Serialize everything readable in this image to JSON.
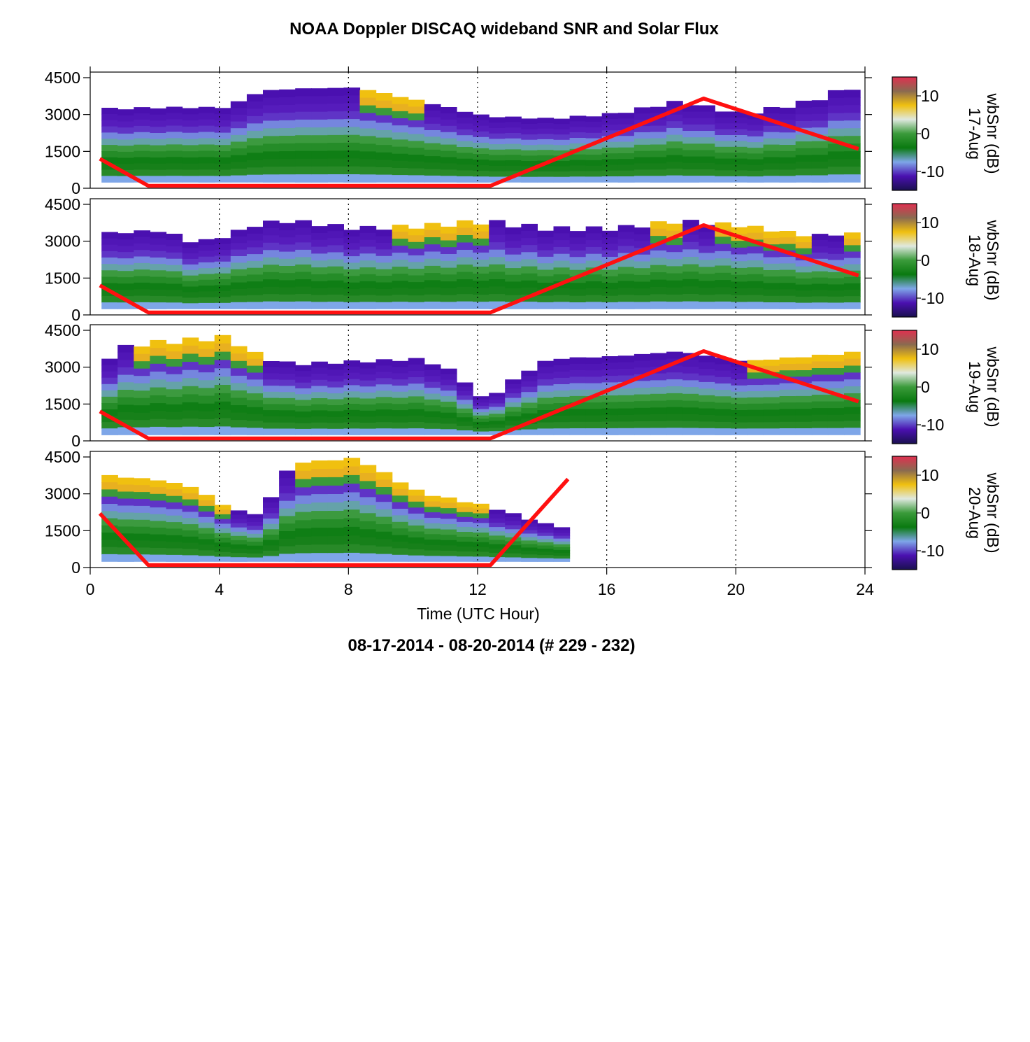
{
  "chart_data": {
    "type": "heatmap",
    "title": "NOAA Doppler DISCAQ wideband SNR and Solar Flux",
    "subtitle": "08-17-2014 - 08-20-2014   (# 229 - 232)",
    "xlabel": "Time (UTC Hour)",
    "xlim": [
      0,
      24
    ],
    "x_ticks": [
      "0",
      "4",
      "8",
      "12",
      "16",
      "20",
      "24"
    ],
    "ylim": [
      0,
      4500
    ],
    "y_ticks": [
      "0",
      "1500",
      "3000",
      "4500"
    ],
    "colorbar": {
      "label": "wbSnr (dB)",
      "range": [
        -15,
        15
      ],
      "ticks": [
        "10",
        "0",
        "-10"
      ],
      "colors": [
        "#1a1050",
        "#4a10b0",
        "#7ea6e8",
        "#0a7a10",
        "#3a9a3a",
        "#dfe8df",
        "#f0c010",
        "#8a6a50",
        "#e03050"
      ]
    },
    "solar_flux_color": "#ff1010",
    "panels": [
      {
        "day_label": "17-Aug",
        "data_end_hour": 23.8,
        "solar_flux": [
          [
            0.3,
            1200
          ],
          [
            1.8,
            100
          ],
          [
            12.4,
            100
          ],
          [
            19,
            3650
          ],
          [
            23.8,
            1600
          ]
        ],
        "snr_top": [
          [
            0.3,
            3200
          ],
          [
            2,
            3250
          ],
          [
            4,
            3250
          ],
          [
            5,
            3900
          ],
          [
            6,
            4000
          ],
          [
            8,
            4050
          ],
          [
            10,
            3500
          ],
          [
            12,
            2900
          ],
          [
            14,
            2800
          ],
          [
            16,
            3000
          ],
          [
            18,
            3500
          ],
          [
            20,
            3000
          ],
          [
            22,
            3500
          ],
          [
            23.8,
            4300
          ]
        ],
        "snr_bottom": 250,
        "fringe_hours": [
          8,
          9
        ]
      },
      {
        "day_label": "18-Aug",
        "data_end_hour": 23.8,
        "solar_flux": [
          [
            0.3,
            1200
          ],
          [
            1.8,
            100
          ],
          [
            12.4,
            100
          ],
          [
            19,
            3650
          ],
          [
            23.8,
            1600
          ]
        ],
        "snr_top": [
          [
            0.3,
            3300
          ],
          [
            2,
            3400
          ],
          [
            3,
            2900
          ],
          [
            4,
            3200
          ],
          [
            5,
            3700
          ],
          [
            6,
            3800
          ],
          [
            8,
            3500
          ],
          [
            10,
            3600
          ],
          [
            12,
            3800
          ],
          [
            14,
            3500
          ],
          [
            16,
            3500
          ],
          [
            18,
            3800
          ],
          [
            20,
            3600
          ],
          [
            22,
            3200
          ],
          [
            23.8,
            3300
          ]
        ],
        "snr_bottom": 250,
        "fringe_hours": [
          9,
          10,
          11,
          17,
          19,
          20,
          21,
          23
        ]
      },
      {
        "day_label": "19-Aug",
        "data_end_hour": 23.8,
        "solar_flux": [
          [
            0.3,
            1200
          ],
          [
            1.8,
            100
          ],
          [
            12.4,
            100
          ],
          [
            19,
            3650
          ],
          [
            23.8,
            1600
          ]
        ],
        "snr_top": [
          [
            0.3,
            3400
          ],
          [
            1,
            3900
          ],
          [
            3,
            4100
          ],
          [
            4,
            4200
          ],
          [
            5,
            3400
          ],
          [
            6,
            3100
          ],
          [
            8,
            3200
          ],
          [
            10,
            3300
          ],
          [
            11,
            2800
          ],
          [
            12,
            1600
          ],
          [
            13,
            2600
          ],
          [
            14,
            3300
          ],
          [
            16,
            3400
          ],
          [
            18,
            3600
          ],
          [
            20,
            3200
          ],
          [
            22,
            3400
          ],
          [
            23.8,
            3600
          ]
        ],
        "snr_bottom": 250,
        "fringe_hours": [
          1,
          2,
          3,
          4,
          20,
          21,
          22,
          23
        ]
      },
      {
        "day_label": "20-Aug",
        "data_end_hour": 14.8,
        "solar_flux": [
          [
            0.3,
            2200
          ],
          [
            1.8,
            100
          ],
          [
            12.4,
            100
          ],
          [
            14.8,
            3600
          ]
        ],
        "snr_top": [
          [
            0.3,
            3700
          ],
          [
            2,
            3500
          ],
          [
            3,
            3200
          ],
          [
            4,
            2400
          ],
          [
            5,
            2100
          ],
          [
            6,
            4200
          ],
          [
            7,
            4300
          ],
          [
            8,
            4400
          ],
          [
            10,
            3000
          ],
          [
            12,
            2500
          ],
          [
            14,
            1700
          ],
          [
            14.8,
            1600
          ]
        ],
        "snr_bottom": 250,
        "fringe_hours": [
          0,
          1,
          2,
          3,
          6,
          7,
          8,
          9,
          10,
          11
        ]
      }
    ]
  }
}
